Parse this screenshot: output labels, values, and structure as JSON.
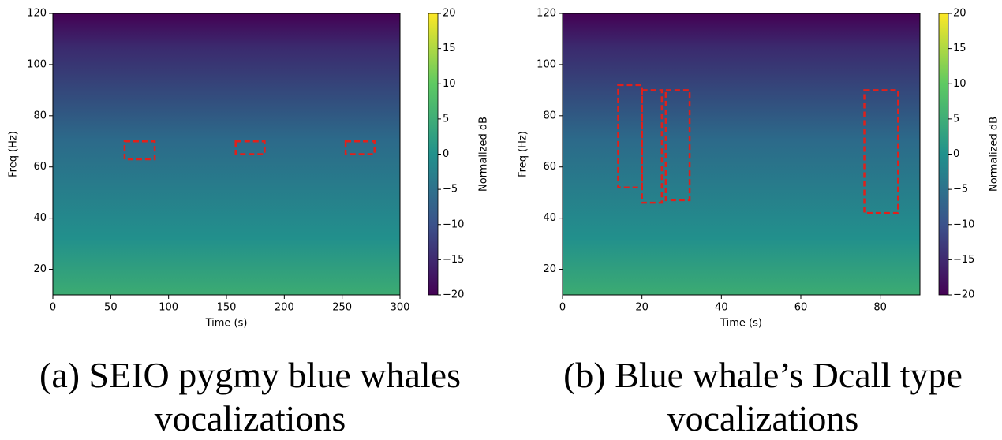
{
  "chart_data": [
    {
      "type": "spectrogram",
      "xlabel": "Time (s)",
      "ylabel": "Freq (Hz)",
      "xlim": [
        0,
        300
      ],
      "xticks": [
        0,
        50,
        100,
        150,
        200,
        250,
        300
      ],
      "ylim": [
        10,
        120
      ],
      "yticks": [
        20,
        40,
        60,
        80,
        100,
        120
      ],
      "colorbar": {
        "label": "Normalized dB",
        "lim": [
          -20,
          20
        ],
        "ticks": [
          {
            "value": -20,
            "label": "−20"
          },
          {
            "value": -15,
            "label": "−15"
          },
          {
            "value": -10,
            "label": "−10"
          },
          {
            "value": -5,
            "label": "−5"
          },
          0,
          5,
          10,
          15,
          20
        ]
      },
      "boxes": [
        {
          "x": [
            62,
            88
          ],
          "y": [
            63,
            70
          ]
        },
        {
          "x": [
            158,
            183
          ],
          "y": [
            65,
            70
          ]
        },
        {
          "x": [
            253,
            278
          ],
          "y": [
            65,
            70
          ]
        }
      ],
      "box_color": "#e0201b",
      "caption": "(a) SEIO pygmy blue whales vocalizations"
    },
    {
      "type": "spectrogram",
      "xlabel": "Time (s)",
      "ylabel": "Freq (Hz)",
      "xlim": [
        0,
        90
      ],
      "xticks": [
        0,
        20,
        40,
        60,
        80
      ],
      "ylim": [
        10,
        120
      ],
      "yticks": [
        20,
        40,
        60,
        80,
        100,
        120
      ],
      "colorbar": {
        "label": "Normalized dB",
        "lim": [
          -20,
          20
        ],
        "ticks": [
          {
            "value": -20,
            "label": "−20"
          },
          {
            "value": -15,
            "label": "−15"
          },
          {
            "value": -10,
            "label": "−10"
          },
          {
            "value": -5,
            "label": "−5"
          },
          0,
          5,
          10,
          15,
          20
        ]
      },
      "boxes": [
        {
          "x": [
            14,
            20
          ],
          "y": [
            52,
            92
          ]
        },
        {
          "x": [
            20,
            25
          ],
          "y": [
            46,
            90
          ]
        },
        {
          "x": [
            26,
            32
          ],
          "y": [
            47,
            90
          ]
        },
        {
          "x": [
            76,
            84.5
          ],
          "y": [
            42,
            90
          ]
        }
      ],
      "box_color": "#e0201b",
      "caption": "(b) Blue whale’s Dcall type vocalizations"
    }
  ]
}
